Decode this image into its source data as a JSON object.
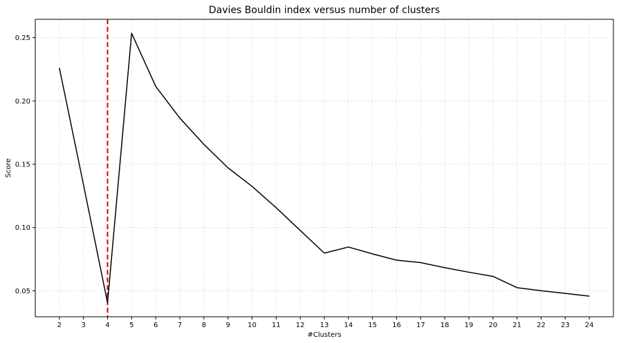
{
  "chart_data": {
    "type": "line",
    "title": "Davies Bouldin index versus number of clusters",
    "xlabel": "#Clusters",
    "ylabel": "Score",
    "x": [
      2,
      3,
      4,
      5,
      6,
      7,
      8,
      9,
      10,
      11,
      12,
      13,
      14,
      15,
      16,
      17,
      18,
      19,
      20,
      21,
      22,
      23,
      24
    ],
    "series": [
      {
        "values": [
          0.2262,
          0.134,
          0.0405,
          0.2535,
          0.2115,
          0.1865,
          0.1657,
          0.1472,
          0.1325,
          0.1157,
          0.0977,
          0.0798,
          0.0846,
          0.0792,
          0.0742,
          0.0723,
          0.0683,
          0.0647,
          0.0614,
          0.0525,
          0.0501,
          0.048,
          0.0458
        ],
        "color": "#000000"
      }
    ],
    "xticks": [
      "2",
      "3",
      "4",
      "5",
      "6",
      "7",
      "8",
      "9",
      "10",
      "11",
      "12",
      "13",
      "14",
      "15",
      "16",
      "17",
      "18",
      "19",
      "20",
      "21",
      "22",
      "23",
      "24"
    ],
    "yticks": [
      "0.05",
      "0.10",
      "0.15",
      "0.20",
      "0.25"
    ],
    "ytick_values": [
      0.05,
      0.1,
      0.15,
      0.2,
      0.25
    ],
    "xlim": [
      1.0,
      25.0
    ],
    "ylim": [
      0.0295,
      0.2645
    ],
    "grid": true,
    "vline": {
      "x": 4,
      "color": "#d40000",
      "style": "dashed"
    }
  }
}
